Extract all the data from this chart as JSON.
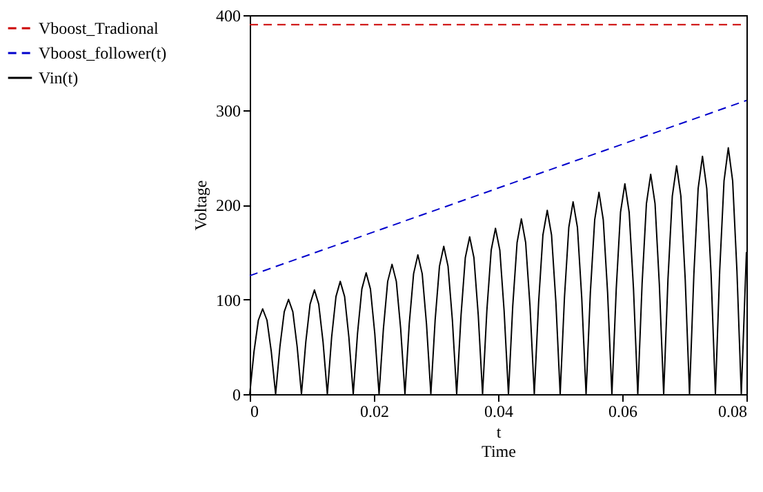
{
  "chart_data": {
    "type": "line",
    "xlabel": "t\nTime",
    "ylabel": "Voltage",
    "xlim": [
      0,
      0.08
    ],
    "xticks": [
      0,
      0.02,
      0.04,
      0.06,
      0.08
    ],
    "ylim": [
      0,
      400
    ],
    "yticks": [
      0,
      100,
      200,
      300,
      400
    ],
    "grid": false,
    "legend": "left",
    "marker": "none",
    "series": [
      {
        "name": "Vboost_Tradional",
        "color": "#cc0000",
        "line_style": "dashed",
        "x": [
          0,
          0.08
        ],
        "values": [
          390,
          390
        ]
      },
      {
        "name": "Vboost_follower(t)",
        "color": "#0000cc",
        "line_style": "dashed",
        "x": [
          0,
          0.08
        ],
        "values": [
          125,
          310
        ]
      },
      {
        "name": "Vin(t)",
        "color": "#000000",
        "line_style": "solid",
        "x": [
          0,
          0.00069,
          0.00139,
          0.00208,
          0.00278,
          0.00347,
          0.00417,
          0.00486,
          0.00556,
          0.00625,
          0.00694,
          0.00764,
          0.00833,
          0.00903,
          0.00972,
          0.01042,
          0.01111,
          0.01181,
          0.0125,
          0.01319,
          0.01389,
          0.01458,
          0.01528,
          0.01597,
          0.01667,
          0.01736,
          0.01806,
          0.01875,
          0.01944,
          0.02014,
          0.02083,
          0.02153,
          0.02222,
          0.02292,
          0.02361,
          0.02431,
          0.025,
          0.02569,
          0.02639,
          0.02708,
          0.02778,
          0.02847,
          0.02917,
          0.02986,
          0.03056,
          0.03125,
          0.03194,
          0.03264,
          0.03333,
          0.03403,
          0.03472,
          0.03542,
          0.03611,
          0.03681,
          0.0375,
          0.03819,
          0.03889,
          0.03958,
          0.04028,
          0.04097,
          0.04167,
          0.04236,
          0.04306,
          0.04375,
          0.04444,
          0.04514,
          0.04583,
          0.04653,
          0.04722,
          0.04792,
          0.04861,
          0.04931,
          0.05,
          0.05069,
          0.05139,
          0.05208,
          0.05278,
          0.05347,
          0.05417,
          0.05486,
          0.05556,
          0.05625,
          0.05694,
          0.05764,
          0.05833,
          0.05903,
          0.05972,
          0.06042,
          0.06111,
          0.06181,
          0.0625,
          0.06319,
          0.06389,
          0.06458,
          0.06528,
          0.06597,
          0.06667,
          0.06736,
          0.06806,
          0.06875,
          0.06944,
          0.07014,
          0.07083,
          0.07153,
          0.07222,
          0.07292,
          0.07361,
          0.07431,
          0.075,
          0.07569,
          0.07639,
          0.07708,
          0.07778,
          0.07847,
          0.07917,
          0.08
        ],
        "values": [
          0,
          45,
          78,
          90,
          78,
          45,
          0,
          50,
          87,
          100,
          87,
          50,
          0,
          55,
          95,
          110,
          95,
          55,
          0,
          60,
          103,
          119,
          103,
          60,
          0,
          64,
          111,
          128,
          111,
          64,
          0,
          69,
          119,
          137,
          119,
          69,
          0,
          74,
          127,
          147,
          127,
          74,
          0,
          78,
          135,
          156,
          135,
          78,
          0,
          83,
          144,
          166,
          144,
          83,
          0,
          88,
          152,
          175,
          152,
          88,
          0,
          93,
          160,
          185,
          160,
          93,
          0,
          97,
          168,
          194,
          168,
          97,
          0,
          102,
          176,
          203,
          176,
          102,
          0,
          107,
          184,
          213,
          184,
          107,
          0,
          111,
          192,
          222,
          192,
          111,
          0,
          116,
          201,
          232,
          201,
          116,
          0,
          121,
          209,
          241,
          209,
          121,
          0,
          126,
          217,
          251,
          217,
          126,
          0,
          130,
          225,
          260,
          225,
          130,
          0,
          150
        ]
      }
    ]
  }
}
